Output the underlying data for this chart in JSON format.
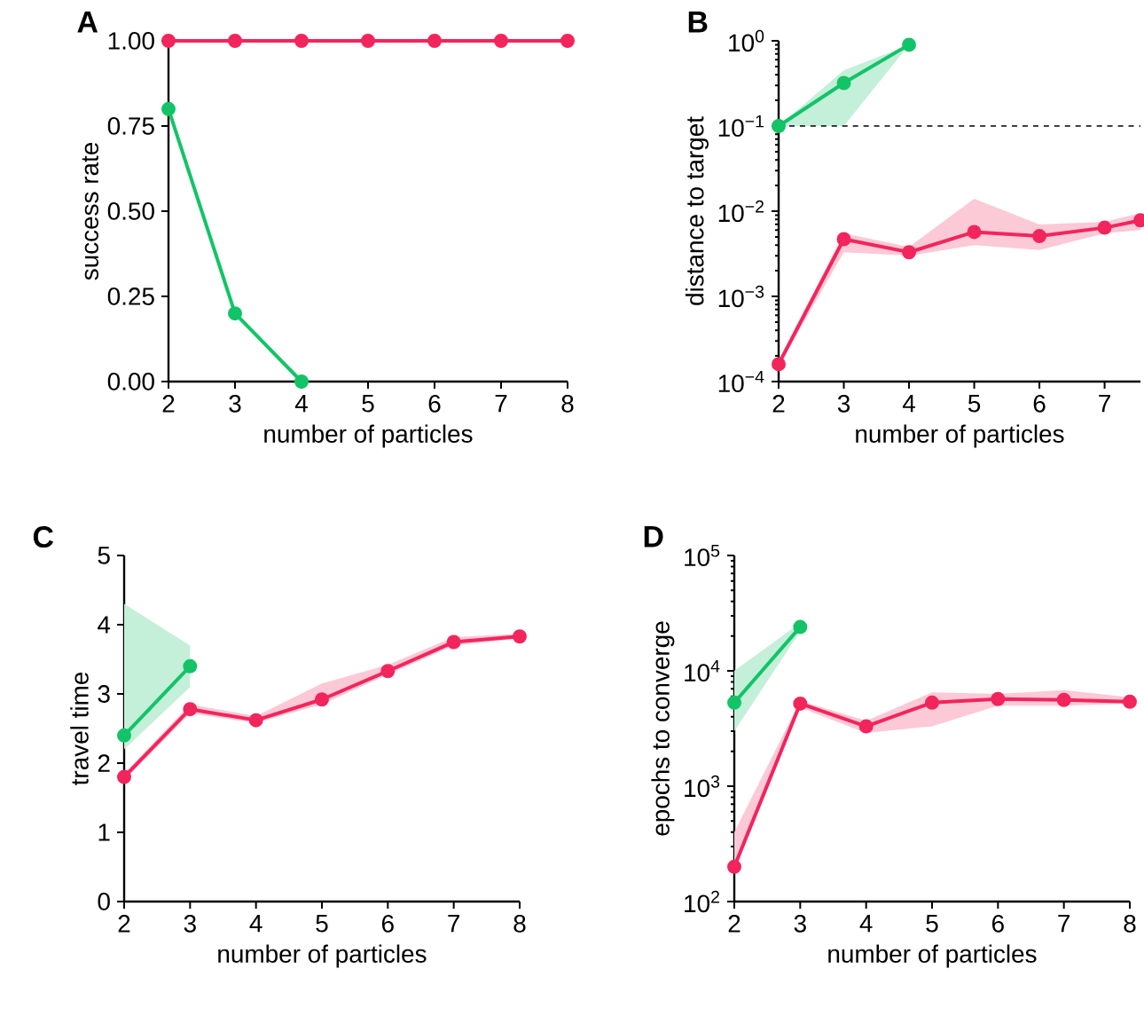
{
  "chart_data": [
    {
      "type": "line",
      "title": "A",
      "xlabel": "number of particles",
      "ylabel": "success rate",
      "x": [
        2,
        3,
        4,
        5,
        6,
        7,
        8
      ],
      "xlim": [
        2,
        8
      ],
      "ylim": [
        0,
        1
      ],
      "xticks": [
        2,
        3,
        4,
        5,
        6,
        7,
        8
      ],
      "yticks": [
        {
          "value": 0,
          "label": "0.00"
        },
        {
          "value": 0.25,
          "label": "0.25"
        },
        {
          "value": 0.5,
          "label": "0.50"
        },
        {
          "value": 0.75,
          "label": "0.75"
        },
        {
          "value": 1,
          "label": "1.00"
        }
      ],
      "marker": "circle",
      "line_style": "solid",
      "series": [
        {
          "color": "#f2255c",
          "values": [
            1,
            1,
            1,
            1,
            1,
            1,
            1
          ]
        },
        {
          "color": "#12c467",
          "x": [
            2,
            3,
            4
          ],
          "values": [
            0.8,
            0.2,
            0.0
          ]
        }
      ]
    },
    {
      "type": "line",
      "title": "B",
      "xlabel": "number of particles",
      "ylabel": "distance to target",
      "x": [
        2,
        3,
        4,
        5,
        6,
        7,
        7.55
      ],
      "xlim": [
        2,
        7.55
      ],
      "ylim": [
        0.0001,
        1
      ],
      "log": "y",
      "xticks": [
        2,
        3,
        4,
        5,
        6,
        7
      ],
      "yticks": [
        {
          "value": 0.0001,
          "label": "10$^{−4}$"
        },
        {
          "value": 0.001,
          "label": "10$^{−3}$"
        },
        {
          "value": 0.01,
          "label": "10$^{−2}$"
        },
        {
          "value": 0.1,
          "label": "10$^{−1}$"
        },
        {
          "value": 1,
          "label": "10$^{0}$"
        }
      ],
      "marker": "circle",
      "line_style": "solid",
      "ref_lines": [
        {
          "axis": "y",
          "value": 0.1,
          "color": "#000000",
          "line_style": "dashed"
        }
      ],
      "series": [
        {
          "color": "#f2255c",
          "values": [
            0.00016,
            0.0047,
            0.0033,
            0.0057,
            0.0051,
            0.0064,
            0.0078
          ],
          "lower": [
            0.00015,
            0.0033,
            0.003,
            0.004,
            0.0035,
            0.0055,
            0.006
          ],
          "upper": [
            0.00018,
            0.0055,
            0.0038,
            0.014,
            0.007,
            0.0075,
            0.0095
          ]
        },
        {
          "color": "#12c467",
          "x": [
            2,
            3,
            4
          ],
          "values": [
            0.1,
            0.32,
            0.9
          ],
          "lower": [
            0.1,
            0.1,
            0.9
          ],
          "upper": [
            0.1,
            0.45,
            0.9
          ]
        }
      ]
    },
    {
      "type": "line",
      "title": "C",
      "xlabel": "number of particles",
      "ylabel": "travel time",
      "x": [
        2,
        3,
        4,
        5,
        6,
        7,
        8
      ],
      "xlim": [
        2,
        8
      ],
      "ylim": [
        0,
        5
      ],
      "xticks": [
        2,
        3,
        4,
        5,
        6,
        7,
        8
      ],
      "yticks": [
        0,
        1,
        2,
        3,
        4,
        5
      ],
      "marker": "circle",
      "line_style": "solid",
      "series": [
        {
          "color": "#f2255c",
          "values": [
            1.8,
            2.78,
            2.62,
            2.92,
            3.33,
            3.75,
            3.83
          ],
          "lower": [
            1.75,
            2.72,
            2.58,
            2.85,
            3.28,
            3.7,
            3.8
          ],
          "upper": [
            1.85,
            2.85,
            2.68,
            3.15,
            3.42,
            3.82,
            3.87
          ]
        },
        {
          "color": "#12c467",
          "x": [
            2,
            3
          ],
          "values": [
            2.4,
            3.4
          ],
          "lower": [
            2.2,
            3.1
          ],
          "upper": [
            4.3,
            3.7
          ]
        }
      ]
    },
    {
      "type": "line",
      "title": "D",
      "xlabel": "number of particles",
      "ylabel": "epochs to converge",
      "x": [
        2,
        3,
        4,
        5,
        6,
        7,
        8
      ],
      "xlim": [
        2,
        8
      ],
      "ylim": [
        100,
        100000
      ],
      "log": "y",
      "xticks": [
        2,
        3,
        4,
        5,
        6,
        7,
        8
      ],
      "yticks": [
        {
          "value": 100,
          "label": "10$^{2}$"
        },
        {
          "value": 1000,
          "label": "10$^{3}$"
        },
        {
          "value": 10000,
          "label": "10$^{4}$"
        },
        {
          "value": 100000,
          "label": "10$^{5}$"
        }
      ],
      "marker": "circle",
      "line_style": "solid",
      "series": [
        {
          "color": "#f2255c",
          "values": [
            200,
            5200,
            3300,
            5300,
            5700,
            5600,
            5400
          ],
          "lower": [
            180,
            4800,
            2900,
            3300,
            5000,
            5000,
            5200
          ],
          "upper": [
            400,
            5500,
            3700,
            6500,
            6300,
            6800,
            5900
          ]
        },
        {
          "color": "#12c467",
          "x": [
            2,
            3
          ],
          "values": [
            5300,
            24000
          ],
          "lower": [
            3000,
            22000
          ],
          "upper": [
            10000,
            26000
          ]
        }
      ]
    }
  ]
}
